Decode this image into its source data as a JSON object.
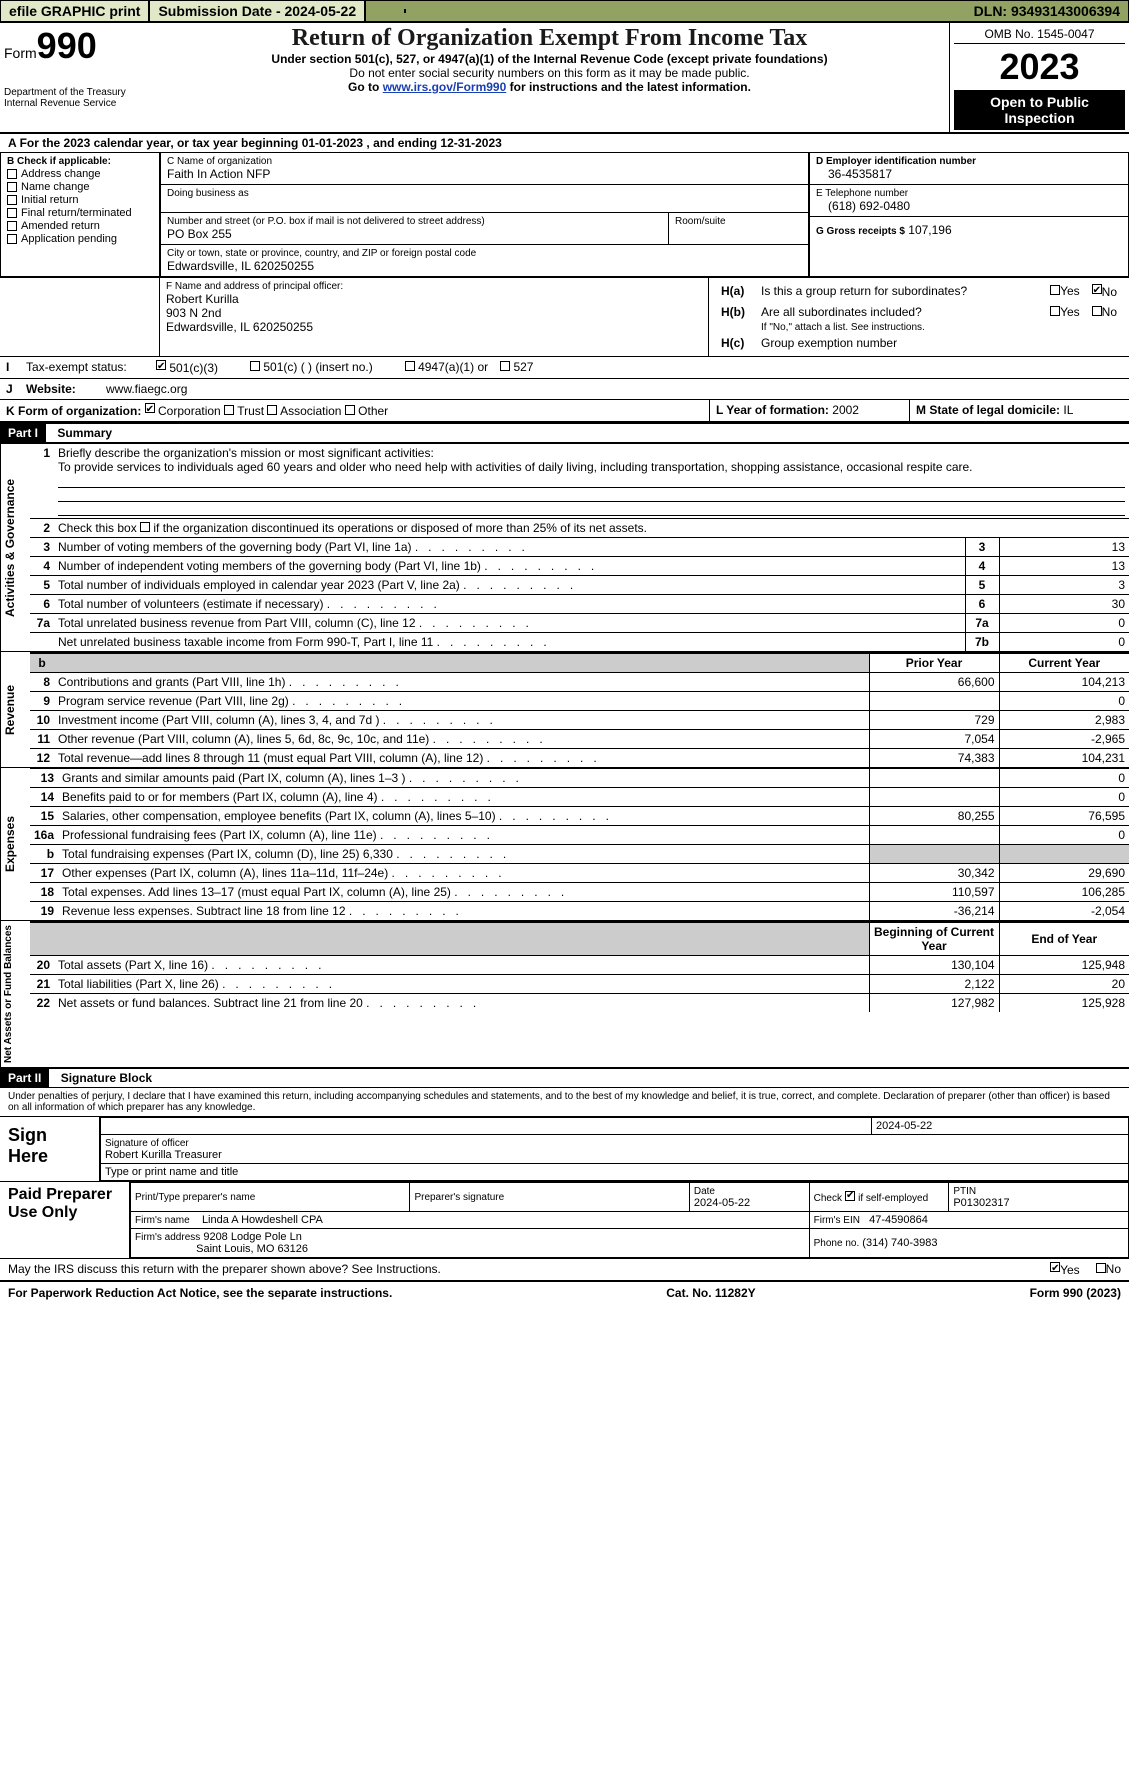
{
  "topbar": {
    "efile": "efile GRAPHIC print",
    "submission": "Submission Date - 2024-05-22",
    "dln": "DLN: 93493143006394"
  },
  "header": {
    "form_prefix": "Form",
    "form_num": "990",
    "dept": "Department of the Treasury",
    "irs": "Internal Revenue Service",
    "title": "Return of Organization Exempt From Income Tax",
    "sub1": "Under section 501(c), 527, or 4947(a)(1) of the Internal Revenue Code (except private foundations)",
    "sub2": "Do not enter social security numbers on this form as it may be made public.",
    "sub3_a": "Go to ",
    "sub3_link": "www.irs.gov/Form990",
    "sub3_b": " for instructions and the latest information.",
    "omb": "OMB No. 1545-0047",
    "year": "2023",
    "pubinsp": "Open to Public Inspection"
  },
  "A": {
    "text_a": "For the 2023 calendar year, or tax year beginning ",
    "begin": "01-01-2023",
    "mid": "   , and ending ",
    "end": "12-31-2023"
  },
  "B": {
    "label": "B Check if applicable:",
    "opts": [
      "Address change",
      "Name change",
      "Initial return",
      "Final return/terminated",
      "Amended return",
      "Application pending"
    ]
  },
  "C": {
    "name_lbl": "C Name of organization",
    "name": "Faith In Action NFP",
    "dba_lbl": "Doing business as",
    "street_lbl": "Number and street (or P.O. box if mail is not delivered to street address)",
    "room_lbl": "Room/suite",
    "street": "PO Box 255",
    "city_lbl": "City or town, state or province, country, and ZIP or foreign postal code",
    "city": "Edwardsville, IL  620250255"
  },
  "D": {
    "lbl": "D Employer identification number",
    "val": "36-4535817"
  },
  "E": {
    "lbl": "E Telephone number",
    "val": "(618) 692-0480"
  },
  "G": {
    "lbl": "G Gross receipts $",
    "val": "107,196"
  },
  "F": {
    "lbl": "F  Name and address of principal officer:",
    "name": "Robert Kurilla",
    "addr1": "903 N 2nd",
    "addr2": "Edwardsville, IL  620250255"
  },
  "H": {
    "a": "Is this a group return for subordinates?",
    "b": "Are all subordinates included?",
    "b_note": "If \"No,\" attach a list. See instructions.",
    "c": "Group exemption number",
    "ha_lbl": "H(a)",
    "hb_lbl": "H(b)",
    "hc_lbl": "H(c)",
    "yes": "Yes",
    "no": "No"
  },
  "I": {
    "lbl": "Tax-exempt status:",
    "o1": "501(c)(3)",
    "o2": "501(c) (  ) (insert no.)",
    "o3": "4947(a)(1) or",
    "o4": "527"
  },
  "J": {
    "lbl": "Website:",
    "val": "www.fiaegc.org"
  },
  "K": {
    "lbl": "K Form of organization:",
    "o1": "Corporation",
    "o2": "Trust",
    "o3": "Association",
    "o4": "Other"
  },
  "L": {
    "lbl": "L Year of formation:",
    "val": "2002"
  },
  "M": {
    "lbl": "M State of legal domicile:",
    "val": "IL"
  },
  "part1": {
    "num": "Part I",
    "title": "Summary"
  },
  "summary": {
    "line1_lbl": "Briefly describe the organization's mission or most significant activities:",
    "line1_txt": "To provide services to individuals aged 60 years and older who need help with activities of daily living, including transportation, shopping assistance, occasional respite care.",
    "line2": "Check this box      if the organization discontinued its operations or disposed of more than 25% of its net assets.",
    "rows": [
      {
        "n": "3",
        "t": "Number of voting members of the governing body (Part VI, line 1a)",
        "box": "3",
        "v": "13"
      },
      {
        "n": "4",
        "t": "Number of independent voting members of the governing body (Part VI, line 1b)",
        "box": "4",
        "v": "13"
      },
      {
        "n": "5",
        "t": "Total number of individuals employed in calendar year 2023 (Part V, line 2a)",
        "box": "5",
        "v": "3"
      },
      {
        "n": "6",
        "t": "Total number of volunteers (estimate if necessary)",
        "box": "6",
        "v": "30"
      },
      {
        "n": "7a",
        "t": "Total unrelated business revenue from Part VIII, column (C), line 12",
        "box": "7a",
        "v": "0"
      },
      {
        "n": "",
        "t": "Net unrelated business taxable income from Form 990-T, Part I, line 11",
        "box": "7b",
        "v": "0"
      }
    ],
    "hdr_prior": "Prior Year",
    "hdr_curr": "Current Year",
    "rev_rows": [
      {
        "n": "8",
        "t": "Contributions and grants (Part VIII, line 1h)",
        "p": "66,600",
        "c": "104,213"
      },
      {
        "n": "9",
        "t": "Program service revenue (Part VIII, line 2g)",
        "p": "",
        "c": "0"
      },
      {
        "n": "10",
        "t": "Investment income (Part VIII, column (A), lines 3, 4, and 7d )",
        "p": "729",
        "c": "2,983"
      },
      {
        "n": "11",
        "t": "Other revenue (Part VIII, column (A), lines 5, 6d, 8c, 9c, 10c, and 11e)",
        "p": "7,054",
        "c": "-2,965"
      },
      {
        "n": "12",
        "t": "Total revenue—add lines 8 through 11 (must equal Part VIII, column (A), line 12)",
        "p": "74,383",
        "c": "104,231"
      }
    ],
    "exp_rows": [
      {
        "n": "13",
        "t": "Grants and similar amounts paid (Part IX, column (A), lines 1–3 )",
        "p": "",
        "c": "0"
      },
      {
        "n": "14",
        "t": "Benefits paid to or for members (Part IX, column (A), line 4)",
        "p": "",
        "c": "0"
      },
      {
        "n": "15",
        "t": "Salaries, other compensation, employee benefits (Part IX, column (A), lines 5–10)",
        "p": "80,255",
        "c": "76,595"
      },
      {
        "n": "16a",
        "t": "Professional fundraising fees (Part IX, column (A), line 11e)",
        "p": "",
        "c": "0"
      },
      {
        "n": "b",
        "t": "Total fundraising expenses (Part IX, column (D), line 25) 6,330",
        "p": "shade",
        "c": "shade"
      },
      {
        "n": "17",
        "t": "Other expenses (Part IX, column (A), lines 11a–11d, 11f–24e)",
        "p": "30,342",
        "c": "29,690"
      },
      {
        "n": "18",
        "t": "Total expenses. Add lines 13–17 (must equal Part IX, column (A), line 25)",
        "p": "110,597",
        "c": "106,285"
      },
      {
        "n": "19",
        "t": "Revenue less expenses. Subtract line 18 from line 12",
        "p": "-36,214",
        "c": "-2,054"
      }
    ],
    "hdr_bcy": "Beginning of Current Year",
    "hdr_eoy": "End of Year",
    "na_rows": [
      {
        "n": "20",
        "t": "Total assets (Part X, line 16)",
        "p": "130,104",
        "c": "125,948"
      },
      {
        "n": "21",
        "t": "Total liabilities (Part X, line 26)",
        "p": "2,122",
        "c": "20"
      },
      {
        "n": "22",
        "t": "Net assets or fund balances. Subtract line 21 from line 20",
        "p": "127,982",
        "c": "125,928"
      }
    ],
    "vlab_ag": "Activities & Governance",
    "vlab_rev": "Revenue",
    "vlab_exp": "Expenses",
    "vlab_na": "Net Assets or Fund Balances"
  },
  "part2": {
    "num": "Part II",
    "title": "Signature Block"
  },
  "sig": {
    "perjury": "Under penalties of perjury, I declare that I have examined this return, including accompanying schedules and statements, and to the best of my knowledge and belief, it is true, correct, and complete. Declaration of preparer (other than officer) is based on all information of which preparer has any knowledge.",
    "sign_here": "Sign Here",
    "sig_of_officer": "Signature of officer",
    "sig_date": "2024-05-22",
    "officer_name": "Robert Kurilla  Treasurer",
    "type_name": "Type or print name and title",
    "paid": "Paid Preparer Use Only",
    "print_name_lbl": "Print/Type preparer's name",
    "prep_sig_lbl": "Preparer's signature",
    "date_lbl": "Date",
    "date_val": "2024-05-22",
    "check_if": "Check",
    "check_if2": "if self-employed",
    "ptin_lbl": "PTIN",
    "ptin_val": "P01302317",
    "firm_name_lbl": "Firm's name",
    "firm_name": "Linda A Howdeshell CPA",
    "firm_ein_lbl": "Firm's EIN",
    "firm_ein": "47-4590864",
    "firm_addr_lbl": "Firm's address",
    "firm_addr1": "9208 Lodge Pole Ln",
    "firm_addr2": "Saint Louis, MO  63126",
    "phone_lbl": "Phone no.",
    "phone": "(314) 740-3983",
    "may_irs": "May the IRS discuss this return with the preparer shown above? See Instructions."
  },
  "footer": {
    "left": "For Paperwork Reduction Act Notice, see the separate instructions.",
    "mid": "Cat. No. 11282Y",
    "right": "Form 990 (2023)"
  }
}
